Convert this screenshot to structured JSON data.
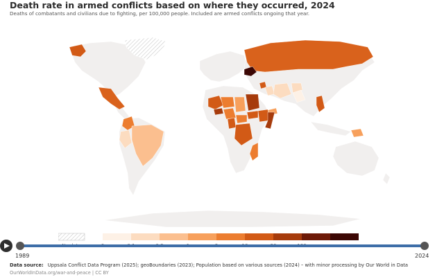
{
  "header": {
    "title": "Death rate in armed conflicts based on where they occurred, 2024",
    "subtitle": "Deaths of combatants and civilians due to fighting, per 100,000 people. Included are armed conflicts ongoing that year."
  },
  "legend": {
    "no_data_label": "No data",
    "bins": [
      {
        "label": "0",
        "color": "#fdf1e6"
      },
      {
        "label": "0.1",
        "color": "#fcdcc0"
      },
      {
        "label": "0.3",
        "color": "#fbbf8f"
      },
      {
        "label": "1",
        "color": "#f7a05c"
      },
      {
        "label": "3",
        "color": "#ec7d30"
      },
      {
        "label": "10",
        "color": "#d25a16"
      },
      {
        "label": "30",
        "color": "#a63b0c"
      },
      {
        "label": "100",
        "color": "#6d1a08"
      },
      {
        "label": "",
        "color": "#3c0704"
      }
    ]
  },
  "map": {
    "land_color": "#f1efee",
    "colors": {
      "russia": "#d9621c",
      "ukraine": "#3c0704",
      "mexico": "#d9621c",
      "colombia": "#ec7d30",
      "brazil": "#fbbf8f",
      "peru": "#fcdcc0",
      "sudan": "#a63b0c",
      "burkina_faso": "#a63b0c",
      "mali": "#d25a16",
      "niger": "#ec7d30",
      "nigeria": "#ec7d30",
      "cameroon": "#d25a16",
      "car": "#ec7d30",
      "drc": "#d25a16",
      "south_sudan": "#d25a16",
      "ethiopia": "#d25a16",
      "somalia": "#a63b0c",
      "chad": "#f7a05c",
      "mozambique": "#ec7d30",
      "myanmar": "#d25a16",
      "syria": "#d25a16",
      "iraq": "#fcdcc0",
      "iran": "#fcdcc0",
      "afghanistan": "#fcdcc0",
      "pakistan": "#fdf1e6",
      "yemen": "#f7a05c",
      "papua": "#f7a05c",
      "alaska": "#d25a16",
      "greenland_hatch": "no-data"
    }
  },
  "timeline": {
    "start_year": "1989",
    "end_year": "2024"
  },
  "footer": {
    "source_label": "Data source:",
    "source_text": "Uppsala Conflict Data Program (2025); geoBoundaries (2023); Population based on various sources (2024) – with minor processing by Our World in Data",
    "credit": "OurWorldInData.org/war-and-peace | CC BY"
  }
}
